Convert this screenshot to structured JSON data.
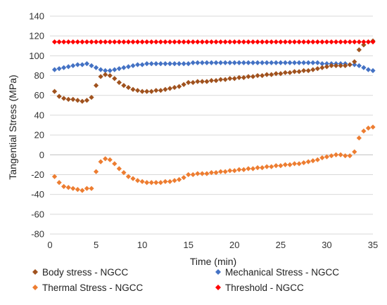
{
  "chart_data": {
    "type": "scatter",
    "title": "",
    "xlabel": "Time (min)",
    "ylabel": "Tangential Stress  (MPa)",
    "xlim": [
      0,
      35
    ],
    "ylim": [
      -80,
      140
    ],
    "x_ticks": [
      0,
      5,
      10,
      15,
      20,
      25,
      30,
      35
    ],
    "y_ticks": [
      -80,
      -60,
      -40,
      -20,
      0,
      20,
      40,
      60,
      80,
      100,
      120,
      140
    ],
    "grid": "horizontal",
    "legend_position": "bottom",
    "marker": "diamond",
    "series": [
      {
        "name": "Body stress - NGCC",
        "color": "#A0521E",
        "points": [
          [
            0.5,
            64
          ],
          [
            1,
            59
          ],
          [
            1.5,
            57
          ],
          [
            2,
            56
          ],
          [
            2.5,
            56
          ],
          [
            3,
            55
          ],
          [
            3.5,
            54
          ],
          [
            4,
            55
          ],
          [
            4.5,
            58
          ],
          [
            5,
            70
          ],
          [
            5.5,
            79
          ],
          [
            6,
            81
          ],
          [
            6.5,
            80
          ],
          [
            7,
            77
          ],
          [
            7.5,
            73
          ],
          [
            8,
            70
          ],
          [
            8.5,
            68
          ],
          [
            9,
            66
          ],
          [
            9.5,
            65
          ],
          [
            10,
            64
          ],
          [
            10.5,
            64
          ],
          [
            11,
            64
          ],
          [
            11.5,
            65
          ],
          [
            12,
            65
          ],
          [
            12.5,
            66
          ],
          [
            13,
            67
          ],
          [
            13.5,
            68
          ],
          [
            14,
            69
          ],
          [
            14.5,
            71
          ],
          [
            15,
            73
          ],
          [
            15.5,
            73
          ],
          [
            16,
            74
          ],
          [
            16.5,
            74
          ],
          [
            17,
            74
          ],
          [
            17.5,
            75
          ],
          [
            18,
            75
          ],
          [
            18.5,
            76
          ],
          [
            19,
            76
          ],
          [
            19.5,
            77
          ],
          [
            20,
            77
          ],
          [
            20.5,
            78
          ],
          [
            21,
            78
          ],
          [
            21.5,
            79
          ],
          [
            22,
            79
          ],
          [
            22.5,
            80
          ],
          [
            23,
            80
          ],
          [
            23.5,
            81
          ],
          [
            24,
            81
          ],
          [
            24.5,
            82
          ],
          [
            25,
            82
          ],
          [
            25.5,
            83
          ],
          [
            26,
            83
          ],
          [
            26.5,
            84
          ],
          [
            27,
            84
          ],
          [
            27.5,
            85
          ],
          [
            28,
            85
          ],
          [
            28.5,
            86
          ],
          [
            29,
            87
          ],
          [
            29.5,
            88
          ],
          [
            30,
            89
          ],
          [
            30.5,
            90
          ],
          [
            31,
            90
          ],
          [
            31.5,
            90
          ],
          [
            32,
            90
          ],
          [
            32.5,
            91
          ],
          [
            33,
            94
          ],
          [
            33.5,
            106
          ],
          [
            34,
            111
          ],
          [
            34.5,
            114
          ],
          [
            35,
            115
          ]
        ]
      },
      {
        "name": "Mechanical Stress - NGCC",
        "color": "#4472C4",
        "points": [
          [
            0.5,
            86
          ],
          [
            1,
            87
          ],
          [
            1.5,
            88
          ],
          [
            2,
            89
          ],
          [
            2.5,
            90
          ],
          [
            3,
            91
          ],
          [
            3.5,
            91
          ],
          [
            4,
            92
          ],
          [
            4.5,
            90
          ],
          [
            5,
            88
          ],
          [
            5.5,
            86
          ],
          [
            6,
            85
          ],
          [
            6.5,
            85
          ],
          [
            7,
            86
          ],
          [
            7.5,
            87
          ],
          [
            8,
            88
          ],
          [
            8.5,
            89
          ],
          [
            9,
            90
          ],
          [
            9.5,
            91
          ],
          [
            10,
            91
          ],
          [
            10.5,
            92
          ],
          [
            11,
            92
          ],
          [
            11.5,
            92
          ],
          [
            12,
            92
          ],
          [
            12.5,
            92
          ],
          [
            13,
            92
          ],
          [
            13.5,
            92
          ],
          [
            14,
            92
          ],
          [
            14.5,
            92
          ],
          [
            15,
            92
          ],
          [
            15.5,
            93
          ],
          [
            16,
            93
          ],
          [
            16.5,
            93
          ],
          [
            17,
            93
          ],
          [
            17.5,
            93
          ],
          [
            18,
            93
          ],
          [
            18.5,
            93
          ],
          [
            19,
            93
          ],
          [
            19.5,
            93
          ],
          [
            20,
            93
          ],
          [
            20.5,
            93
          ],
          [
            21,
            93
          ],
          [
            21.5,
            93
          ],
          [
            22,
            93
          ],
          [
            22.5,
            93
          ],
          [
            23,
            93
          ],
          [
            23.5,
            93
          ],
          [
            24,
            93
          ],
          [
            24.5,
            93
          ],
          [
            25,
            93
          ],
          [
            25.5,
            93
          ],
          [
            26,
            93
          ],
          [
            26.5,
            93
          ],
          [
            27,
            93
          ],
          [
            27.5,
            93
          ],
          [
            28,
            93
          ],
          [
            28.5,
            93
          ],
          [
            29,
            93
          ],
          [
            29.5,
            92
          ],
          [
            30,
            92
          ],
          [
            30.5,
            92
          ],
          [
            31,
            92
          ],
          [
            31.5,
            92
          ],
          [
            32,
            92
          ],
          [
            32.5,
            91
          ],
          [
            33,
            91
          ],
          [
            33.5,
            90
          ],
          [
            34,
            88
          ],
          [
            34.5,
            86
          ],
          [
            35,
            85
          ]
        ]
      },
      {
        "name": "Thermal Stress - NGCC",
        "color": "#ED7D31",
        "points": [
          [
            0.5,
            -22
          ],
          [
            1,
            -28
          ],
          [
            1.5,
            -32
          ],
          [
            2,
            -33
          ],
          [
            2.5,
            -34
          ],
          [
            3,
            -35
          ],
          [
            3.5,
            -36
          ],
          [
            4,
            -34
          ],
          [
            4.5,
            -34
          ],
          [
            5,
            -17
          ],
          [
            5.5,
            -7
          ],
          [
            6,
            -4
          ],
          [
            6.5,
            -5
          ],
          [
            7,
            -9
          ],
          [
            7.5,
            -14
          ],
          [
            8,
            -18
          ],
          [
            8.5,
            -22
          ],
          [
            9,
            -24
          ],
          [
            9.5,
            -26
          ],
          [
            10,
            -27
          ],
          [
            10.5,
            -28
          ],
          [
            11,
            -28
          ],
          [
            11.5,
            -28
          ],
          [
            12,
            -28
          ],
          [
            12.5,
            -27
          ],
          [
            13,
            -27
          ],
          [
            13.5,
            -26
          ],
          [
            14,
            -25
          ],
          [
            14.5,
            -23
          ],
          [
            15,
            -20
          ],
          [
            15.5,
            -20
          ],
          [
            16,
            -19
          ],
          [
            16.5,
            -19
          ],
          [
            17,
            -19
          ],
          [
            17.5,
            -18
          ],
          [
            18,
            -18
          ],
          [
            18.5,
            -17
          ],
          [
            19,
            -17
          ],
          [
            19.5,
            -16
          ],
          [
            20,
            -16
          ],
          [
            20.5,
            -15
          ],
          [
            21,
            -15
          ],
          [
            21.5,
            -14
          ],
          [
            22,
            -14
          ],
          [
            22.5,
            -13
          ],
          [
            23,
            -13
          ],
          [
            23.5,
            -12
          ],
          [
            24,
            -12
          ],
          [
            24.5,
            -11
          ],
          [
            25,
            -11
          ],
          [
            25.5,
            -10
          ],
          [
            26,
            -10
          ],
          [
            26.5,
            -9
          ],
          [
            27,
            -9
          ],
          [
            27.5,
            -8
          ],
          [
            28,
            -7
          ],
          [
            28.5,
            -6
          ],
          [
            29,
            -5
          ],
          [
            29.5,
            -3
          ],
          [
            30,
            -2
          ],
          [
            30.5,
            -1
          ],
          [
            31,
            0
          ],
          [
            31.5,
            0
          ],
          [
            32,
            -1
          ],
          [
            32.5,
            -1
          ],
          [
            33,
            3
          ],
          [
            33.5,
            17
          ],
          [
            34,
            24
          ],
          [
            34.5,
            27
          ],
          [
            35,
            28
          ]
        ]
      },
      {
        "name": "Threshold - NGCC",
        "color": "#FF0000",
        "points": [
          [
            0.5,
            114
          ],
          [
            1,
            114
          ],
          [
            1.5,
            114
          ],
          [
            2,
            114
          ],
          [
            2.5,
            114
          ],
          [
            3,
            114
          ],
          [
            3.5,
            114
          ],
          [
            4,
            114
          ],
          [
            4.5,
            114
          ],
          [
            5,
            114
          ],
          [
            5.5,
            114
          ],
          [
            6,
            114
          ],
          [
            6.5,
            114
          ],
          [
            7,
            114
          ],
          [
            7.5,
            114
          ],
          [
            8,
            114
          ],
          [
            8.5,
            114
          ],
          [
            9,
            114
          ],
          [
            9.5,
            114
          ],
          [
            10,
            114
          ],
          [
            10.5,
            114
          ],
          [
            11,
            114
          ],
          [
            11.5,
            114
          ],
          [
            12,
            114
          ],
          [
            12.5,
            114
          ],
          [
            13,
            114
          ],
          [
            13.5,
            114
          ],
          [
            14,
            114
          ],
          [
            14.5,
            114
          ],
          [
            15,
            114
          ],
          [
            15.5,
            114
          ],
          [
            16,
            114
          ],
          [
            16.5,
            114
          ],
          [
            17,
            114
          ],
          [
            17.5,
            114
          ],
          [
            18,
            114
          ],
          [
            18.5,
            114
          ],
          [
            19,
            114
          ],
          [
            19.5,
            114
          ],
          [
            20,
            114
          ],
          [
            20.5,
            114
          ],
          [
            21,
            114
          ],
          [
            21.5,
            114
          ],
          [
            22,
            114
          ],
          [
            22.5,
            114
          ],
          [
            23,
            114
          ],
          [
            23.5,
            114
          ],
          [
            24,
            114
          ],
          [
            24.5,
            114
          ],
          [
            25,
            114
          ],
          [
            25.5,
            114
          ],
          [
            26,
            114
          ],
          [
            26.5,
            114
          ],
          [
            27,
            114
          ],
          [
            27.5,
            114
          ],
          [
            28,
            114
          ],
          [
            28.5,
            114
          ],
          [
            29,
            114
          ],
          [
            29.5,
            114
          ],
          [
            30,
            114
          ],
          [
            30.5,
            114
          ],
          [
            31,
            114
          ],
          [
            31.5,
            114
          ],
          [
            32,
            114
          ],
          [
            32.5,
            114
          ],
          [
            33,
            114
          ],
          [
            33.5,
            114
          ],
          [
            34,
            114
          ],
          [
            34.5,
            114
          ],
          [
            35,
            114
          ]
        ]
      }
    ]
  }
}
